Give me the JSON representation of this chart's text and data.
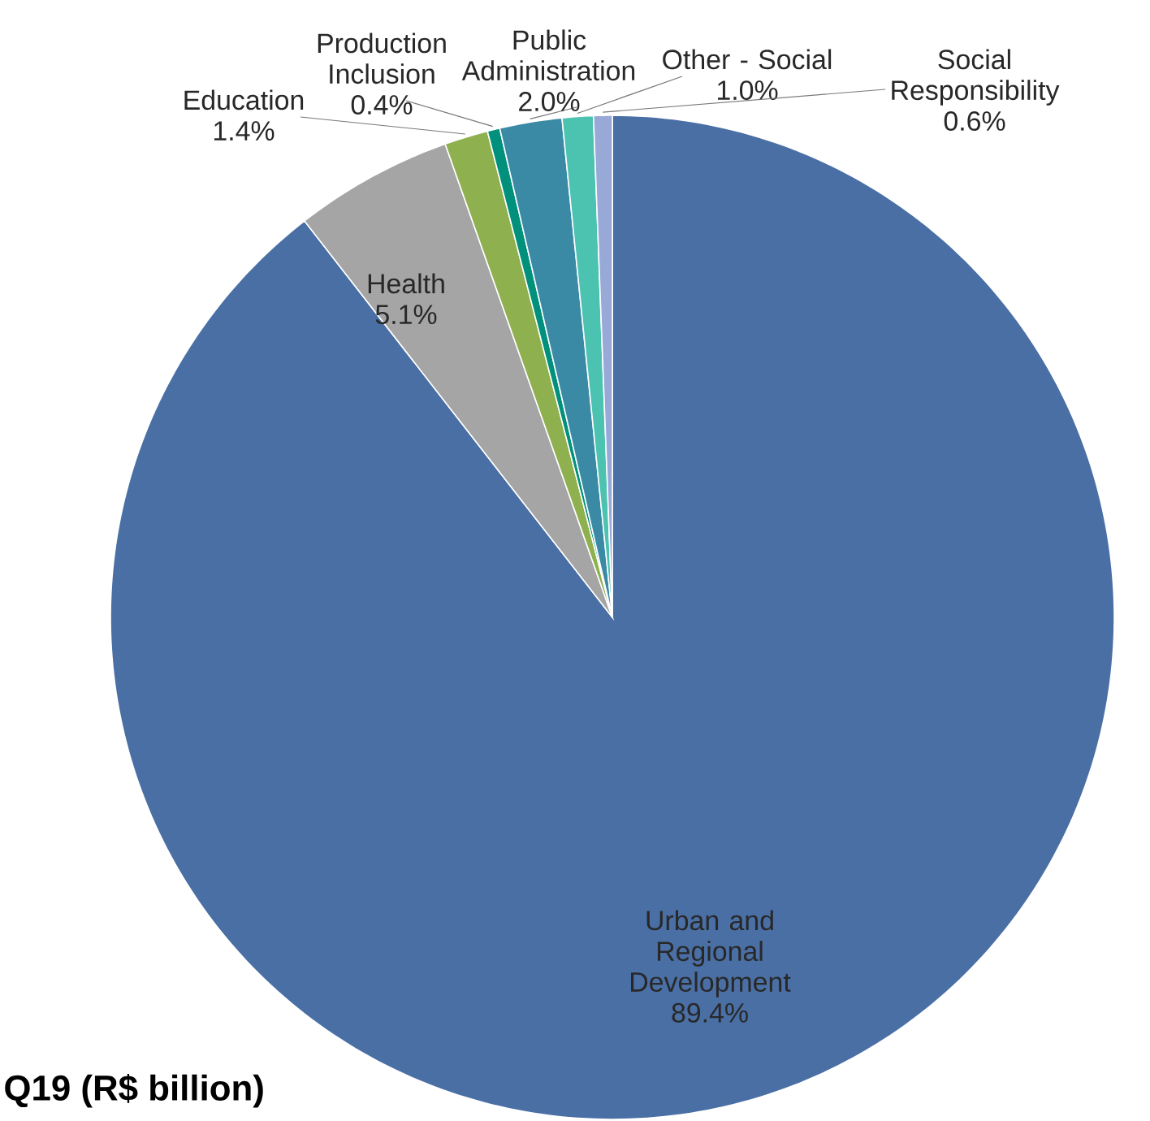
{
  "chart_data": {
    "type": "pie",
    "title": "Q19 (R$ billion)",
    "categories": [
      "Urban and Regional Development",
      "Health",
      "Education",
      "Production Inclusion",
      "Public Administration",
      "Other - Social",
      "Social Responsibility"
    ],
    "values": [
      89.4,
      5.1,
      1.4,
      0.4,
      2.0,
      1.0,
      0.6
    ],
    "value_labels": [
      "89.4%",
      "5.1%",
      "1.4%",
      "0.4%",
      "2.0%",
      "1.0%",
      "0.6%"
    ],
    "colors": [
      "#4a6fa5",
      "#a5a5a5",
      "#8fb04f",
      "#00907c",
      "#3a8aa6",
      "#4cc2b0",
      "#98a9d8"
    ]
  }
}
